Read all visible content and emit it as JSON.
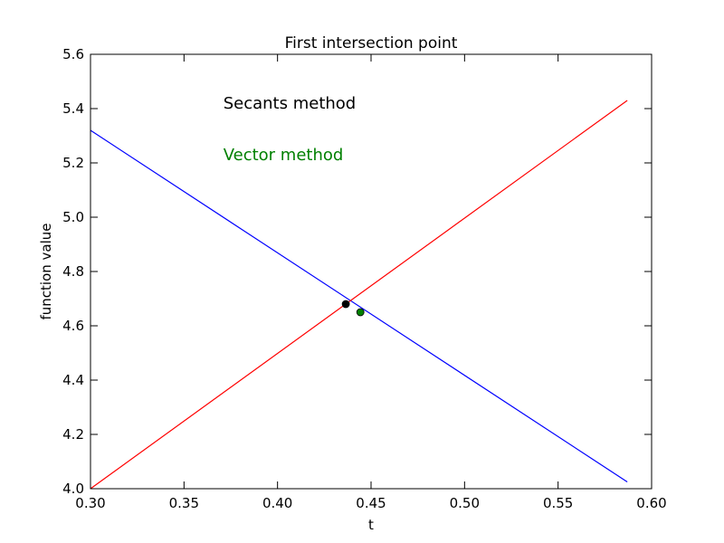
{
  "chart_data": {
    "type": "line",
    "title": "First intersection point",
    "xlabel": "t",
    "ylabel": "function value",
    "xlim": [
      0.3,
      0.6
    ],
    "ylim": [
      4.0,
      5.6
    ],
    "xticks": [
      0.3,
      0.35,
      0.4,
      0.45,
      0.5,
      0.55,
      0.6
    ],
    "xtick_labels": [
      "0.30",
      "0.35",
      "0.40",
      "0.45",
      "0.50",
      "0.55",
      "0.60"
    ],
    "yticks": [
      4.0,
      4.2,
      4.4,
      4.6,
      4.8,
      5.0,
      5.2,
      5.4,
      5.6
    ],
    "ytick_labels": [
      "4.0",
      "4.2",
      "4.4",
      "4.6",
      "4.8",
      "5.0",
      "5.2",
      "5.4",
      "5.6"
    ],
    "grid": false,
    "series": [
      {
        "color": "#0000ff",
        "x": [
          0.3,
          0.587
        ],
        "y": [
          5.32,
          4.025
        ]
      },
      {
        "color": "#ff0000",
        "x": [
          0.3,
          0.587
        ],
        "y": [
          4.0,
          5.43
        ]
      }
    ],
    "points": [
      {
        "color": "#000000",
        "x": 0.4365,
        "y": 4.68
      },
      {
        "color": "#008000",
        "x": 0.4443,
        "y": 4.65
      }
    ],
    "annotations": [
      {
        "text": "Secants method",
        "color": "#000000",
        "x": 0.371,
        "y": 5.4
      },
      {
        "text": "Vector method",
        "color": "#008000",
        "x": 0.371,
        "y": 5.21
      }
    ]
  }
}
